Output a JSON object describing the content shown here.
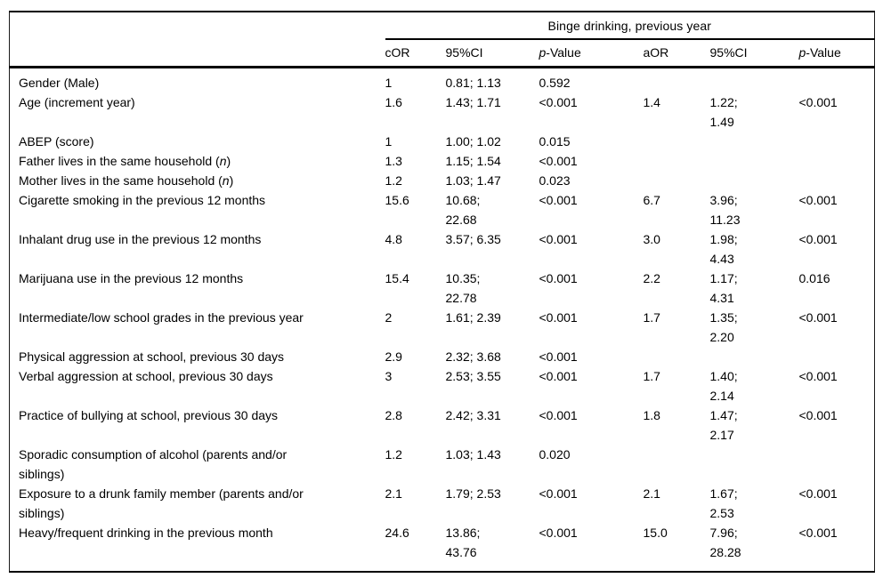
{
  "table": {
    "spanner_title": "Binge drinking, previous year",
    "column_headers": [
      "cOR",
      "95%CI",
      "*p*-Value",
      "aOR",
      "95%CI",
      "*p*-Value"
    ],
    "column_keys": [
      "cor",
      "ci-crude",
      "p-crude",
      "aor",
      "ci-adjusted",
      "p-adjusted"
    ],
    "rows": [
      {
        "label": "Gender (Male)",
        "cells": [
          "1",
          "0.81; 1.13",
          "0.592",
          "",
          "",
          ""
        ]
      },
      {
        "label": "Age (increment year)",
        "cells": [
          "1.6",
          "1.43; 1.71",
          "<0.001",
          "1.4",
          "1.22;\n1.49",
          "<0.001"
        ]
      },
      {
        "label": "ABEP (score)",
        "cells": [
          "1",
          "1.00; 1.02",
          "0.015",
          "",
          "",
          ""
        ]
      },
      {
        "label": "Father lives in the same household (*n*)",
        "cells": [
          "1.3",
          "1.15; 1.54",
          "<0.001",
          "",
          "",
          ""
        ]
      },
      {
        "label": "Mother lives in the same household (*n*)",
        "cells": [
          "1.2",
          "1.03; 1.47",
          "0.023",
          "",
          "",
          ""
        ]
      },
      {
        "label": "Cigarette smoking in the previous 12 months",
        "cells": [
          "15.6",
          "10.68;\n22.68",
          "<0.001",
          "6.7",
          "3.96;\n11.23",
          "<0.001"
        ]
      },
      {
        "label": "Inhalant drug use in the previous 12 months",
        "cells": [
          "4.8",
          "3.57; 6.35",
          "<0.001",
          "3.0",
          "1.98;\n4.43",
          "<0.001"
        ]
      },
      {
        "label": "Marijuana use in the previous 12 months",
        "cells": [
          "15.4",
          "10.35;\n22.78",
          "<0.001",
          "2.2",
          "1.17;\n4.31",
          "0.016"
        ]
      },
      {
        "label": "Intermediate/low school grades in the previous year",
        "cells": [
          "2",
          "1.61; 2.39",
          "<0.001",
          "1.7",
          "1.35;\n2.20",
          "<0.001"
        ]
      },
      {
        "label": "Physical aggression at school, previous 30 days",
        "cells": [
          "2.9",
          "2.32; 3.68",
          "<0.001",
          "",
          "",
          ""
        ]
      },
      {
        "label": "Verbal aggression at school, previous 30 days",
        "cells": [
          "3",
          "2.53; 3.55",
          "<0.001",
          "1.7",
          "1.40;\n2.14",
          "<0.001"
        ]
      },
      {
        "label": "Practice of bullying at school, previous 30 days",
        "cells": [
          "2.8",
          "2.42; 3.31",
          "<0.001",
          "1.8",
          "1.47;\n2.17",
          "<0.001"
        ]
      },
      {
        "label": "Sporadic consumption of alcohol (parents and/or\nsiblings)",
        "cells": [
          "1.2",
          "1.03; 1.43",
          "0.020",
          "",
          "",
          ""
        ]
      },
      {
        "label": "Exposure to a drunk family member (parents and/or\nsiblings)",
        "cells": [
          "2.1",
          "1.79; 2.53",
          "<0.001",
          "2.1",
          "1.67;\n2.53",
          "<0.001"
        ]
      },
      {
        "label": "Heavy/frequent drinking in the previous month",
        "cells": [
          "24.6",
          "13.86;\n43.76",
          "<0.001",
          "15.0",
          "7.96;\n28.28",
          "<0.001"
        ]
      }
    ]
  }
}
